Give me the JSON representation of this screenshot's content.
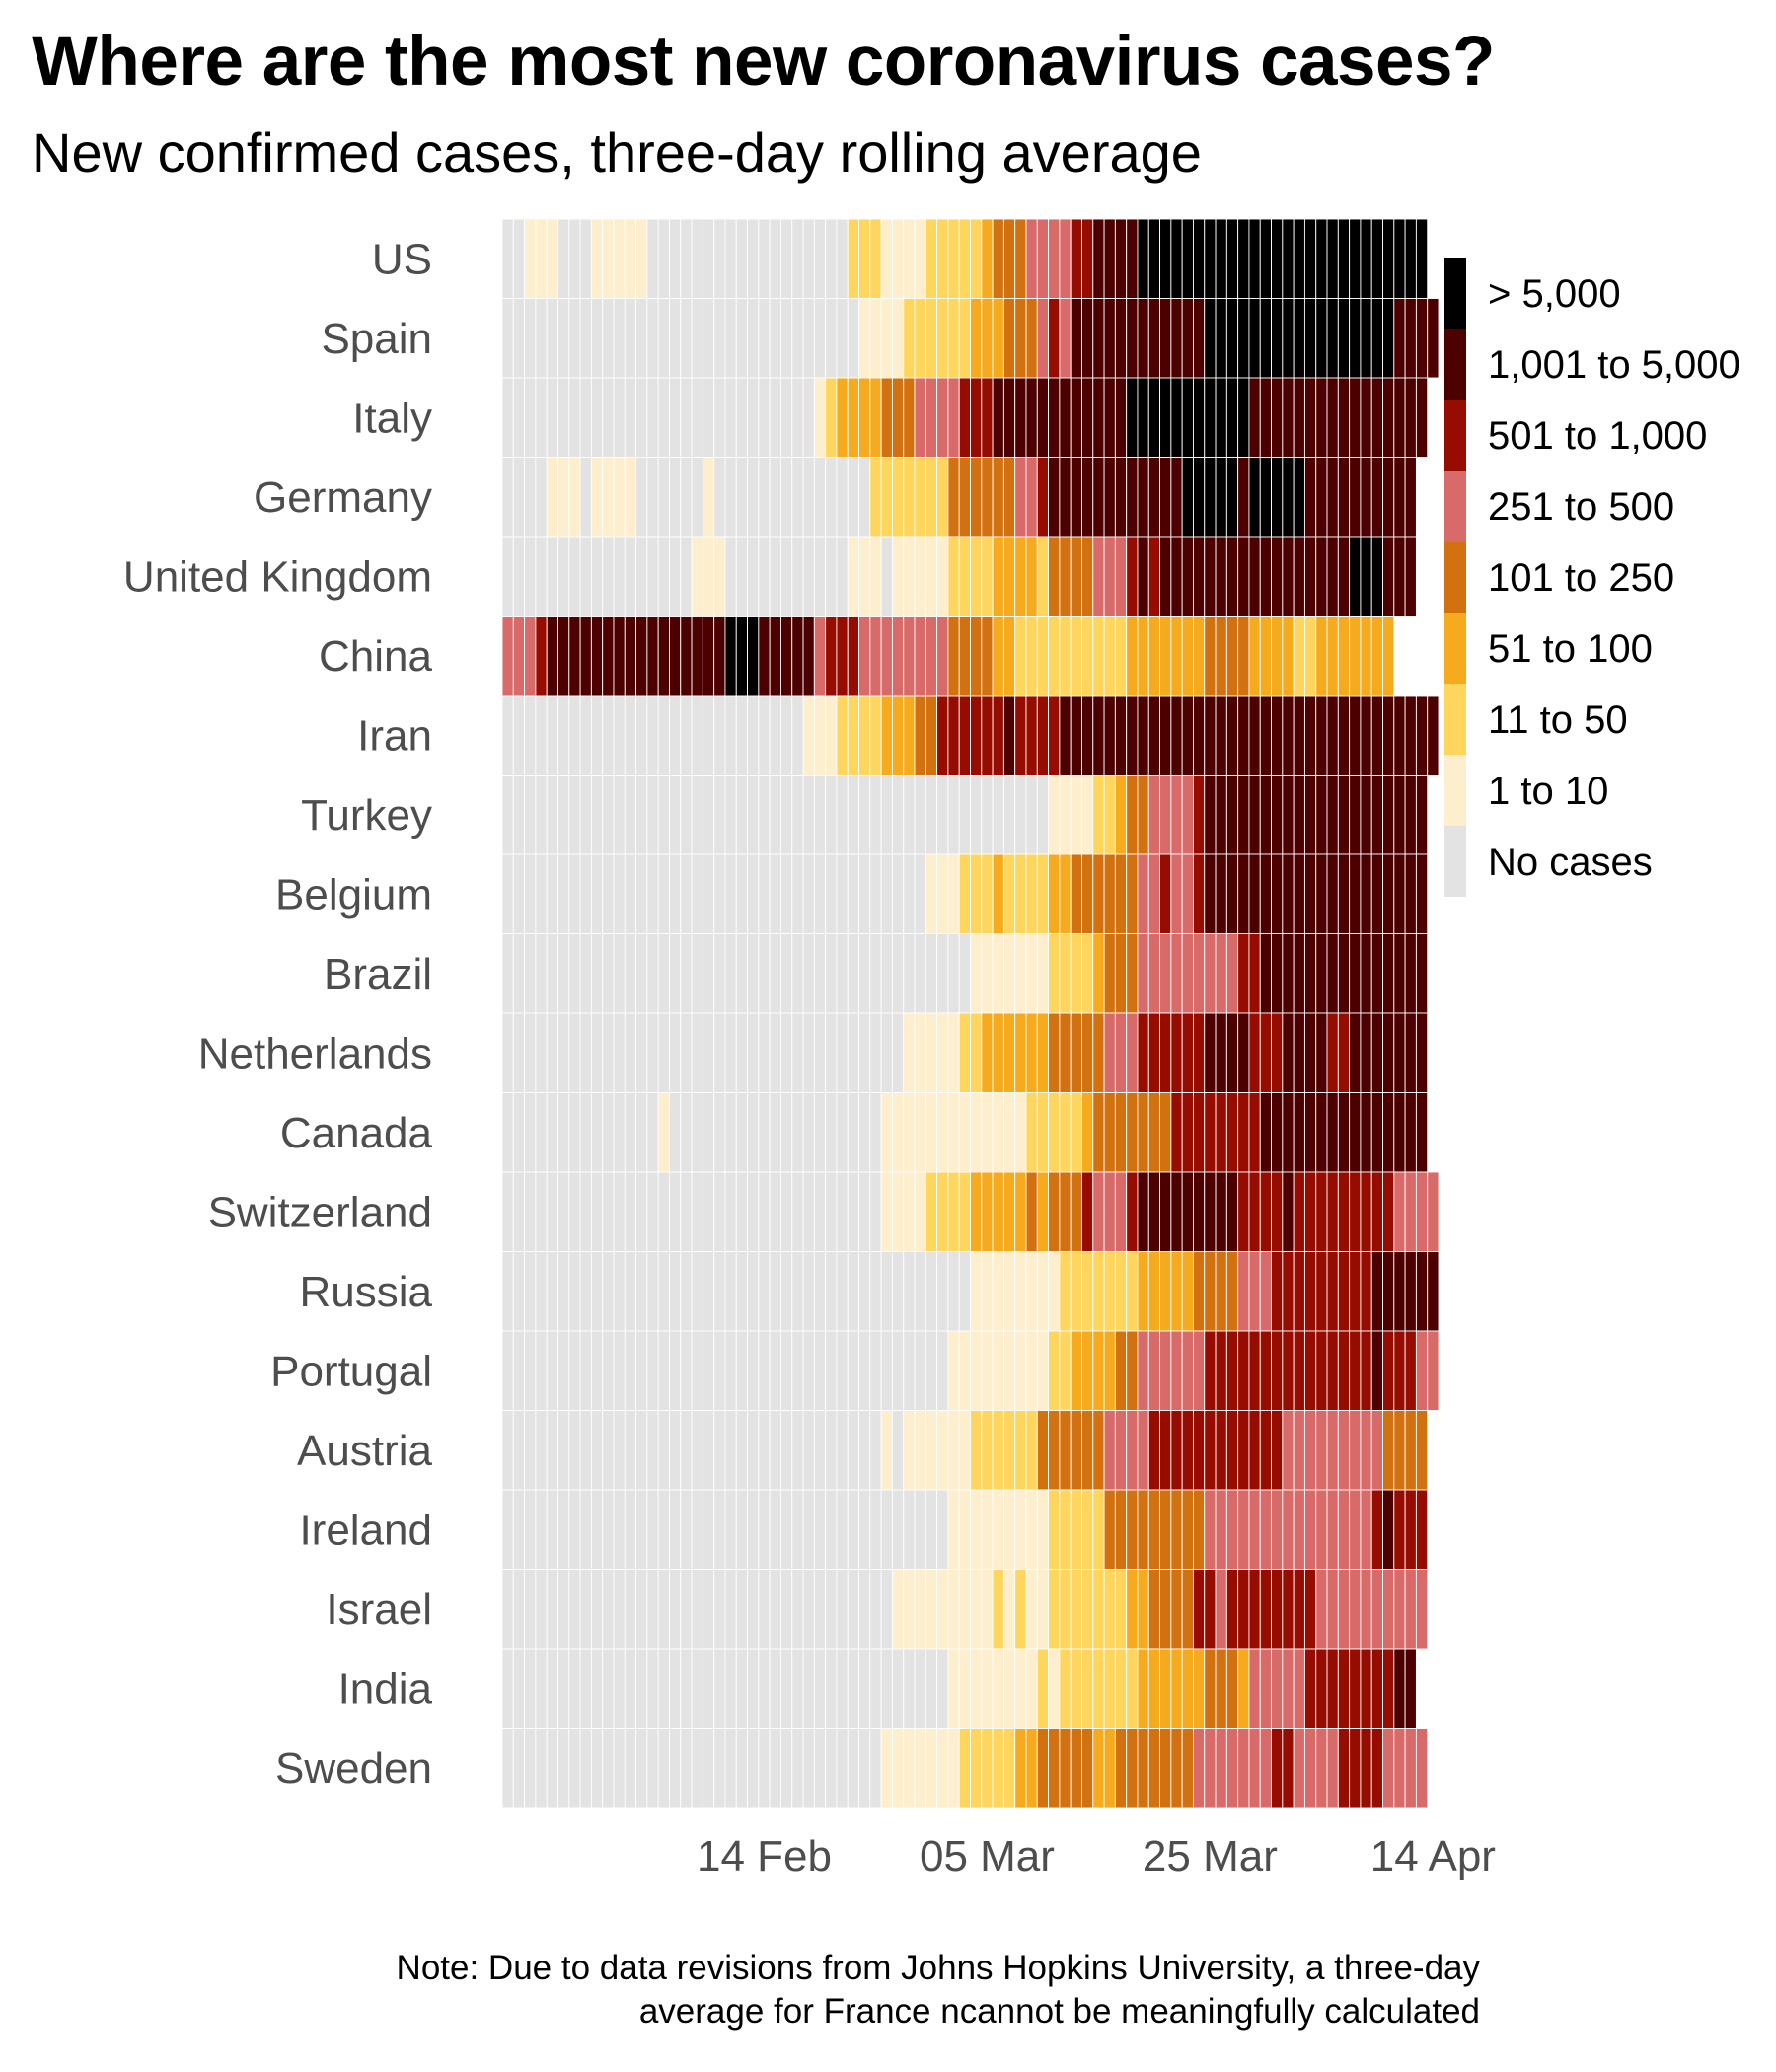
{
  "title": "Where are the most new coronavirus cases?",
  "subtitle": "New confirmed cases, three-day rolling average",
  "note": {
    "line1": "Note: Due to data revisions from Johns Hopkins University, a three-day",
    "line2": "average for France ncannot be meaningfully calculated"
  },
  "chart_data": {
    "type": "heatmap",
    "x_ticks": [
      "14 Feb",
      "05 Mar",
      "25 Mar",
      "14 Apr"
    ],
    "x_range": [
      "22 Jan",
      "15 Apr"
    ],
    "legend": {
      "position": "right",
      "items": [
        {
          "label": "> 5,000",
          "color": "#000000"
        },
        {
          "label": "1,001 to 5,000",
          "color": "#4d0000"
        },
        {
          "label": "501 to 1,000",
          "color": "#970c00"
        },
        {
          "label": "251 to 500",
          "color": "#d96a6a"
        },
        {
          "label": "101 to 250",
          "color": "#d2710f"
        },
        {
          "label": "51 to 100",
          "color": "#f6ab1e"
        },
        {
          "label": "11 to 50",
          "color": "#fed65d"
        },
        {
          "label": "1 to 10",
          "color": "#fdeecd"
        },
        {
          "label": "No cases",
          "color": "#e3e3e3"
        }
      ]
    },
    "level_scale": "0 = No cases, 1 = 1 to 10, 2 = 11 to 50, 3 = 51 to 100, 4 = 101 to 250, 5 = 251 to 500, 6 = 501 to 1,000, 7 = 1,001 to 5,000, 8 = > 5,000",
    "rows": [
      {
        "country": "US",
        "levels": [
          [
            0,
            2
          ],
          [
            1,
            3
          ],
          [
            0,
            3
          ],
          [
            1,
            5
          ],
          [
            0,
            18
          ],
          [
            2,
            3
          ],
          [
            1,
            4
          ],
          [
            2,
            5
          ],
          [
            3,
            1
          ],
          [
            4,
            3
          ],
          [
            5,
            4
          ],
          [
            6,
            2
          ],
          [
            7,
            4
          ],
          [
            8,
            26
          ]
        ]
      },
      {
        "country": "Spain",
        "levels": [
          [
            0,
            32
          ],
          [
            1,
            4
          ],
          [
            2,
            6
          ],
          [
            3,
            3
          ],
          [
            4,
            3
          ],
          [
            5,
            1
          ],
          [
            6,
            1
          ],
          [
            5,
            1
          ],
          [
            7,
            12
          ],
          [
            8,
            17
          ],
          [
            7,
            5
          ]
        ]
      },
      {
        "country": "Italy",
        "levels": [
          [
            0,
            28
          ],
          [
            1,
            1
          ],
          [
            2,
            1
          ],
          [
            3,
            4
          ],
          [
            4,
            3
          ],
          [
            5,
            4
          ],
          [
            6,
            3
          ],
          [
            7,
            12
          ],
          [
            8,
            11
          ],
          [
            7,
            16
          ]
        ]
      },
      {
        "country": "Germany",
        "levels": [
          [
            0,
            4
          ],
          [
            1,
            3
          ],
          [
            0,
            1
          ],
          [
            1,
            4
          ],
          [
            0,
            6
          ],
          [
            1,
            1
          ],
          [
            0,
            14
          ],
          [
            2,
            7
          ],
          [
            4,
            6
          ],
          [
            5,
            2
          ],
          [
            6,
            1
          ],
          [
            7,
            12
          ],
          [
            8,
            5
          ],
          [
            7,
            1
          ],
          [
            8,
            5
          ],
          [
            7,
            10
          ]
        ]
      },
      {
        "country": "United Kingdom",
        "levels": [
          [
            0,
            17
          ],
          [
            1,
            3
          ],
          [
            0,
            11
          ],
          [
            1,
            3
          ],
          [
            0,
            1
          ],
          [
            1,
            5
          ],
          [
            2,
            4
          ],
          [
            3,
            4
          ],
          [
            2,
            1
          ],
          [
            4,
            4
          ],
          [
            5,
            3
          ],
          [
            6,
            1
          ],
          [
            7,
            1
          ],
          [
            6,
            1
          ],
          [
            7,
            17
          ],
          [
            8,
            3
          ],
          [
            7,
            3
          ]
        ]
      },
      {
        "country": "China",
        "levels": [
          [
            5,
            3
          ],
          [
            6,
            1
          ],
          [
            7,
            16
          ],
          [
            8,
            3
          ],
          [
            7,
            5
          ],
          [
            5,
            1
          ],
          [
            6,
            3
          ],
          [
            5,
            8
          ],
          [
            4,
            4
          ],
          [
            3,
            2
          ],
          [
            2,
            10
          ],
          [
            3,
            7
          ],
          [
            4,
            4
          ],
          [
            3,
            4
          ],
          [
            2,
            2
          ],
          [
            3,
            7
          ]
        ]
      },
      {
        "country": "Iran",
        "levels": [
          [
            0,
            27
          ],
          [
            1,
            3
          ],
          [
            2,
            4
          ],
          [
            3,
            3
          ],
          [
            4,
            2
          ],
          [
            6,
            6
          ],
          [
            7,
            1
          ],
          [
            6,
            4
          ],
          [
            7,
            34
          ]
        ]
      },
      {
        "country": "Turkey",
        "levels": [
          [
            0,
            49
          ],
          [
            1,
            4
          ],
          [
            2,
            2
          ],
          [
            3,
            1
          ],
          [
            4,
            2
          ],
          [
            5,
            4
          ],
          [
            6,
            1
          ],
          [
            7,
            20
          ]
        ]
      },
      {
        "country": "Belgium",
        "levels": [
          [
            0,
            38
          ],
          [
            1,
            3
          ],
          [
            2,
            3
          ],
          [
            3,
            1
          ],
          [
            2,
            4
          ],
          [
            3,
            2
          ],
          [
            4,
            6
          ],
          [
            5,
            2
          ],
          [
            6,
            1
          ],
          [
            5,
            2
          ],
          [
            6,
            1
          ],
          [
            7,
            20
          ]
        ]
      },
      {
        "country": "Brazil",
        "levels": [
          [
            0,
            42
          ],
          [
            1,
            7
          ],
          [
            2,
            4
          ],
          [
            3,
            1
          ],
          [
            4,
            3
          ],
          [
            5,
            9
          ],
          [
            6,
            2
          ],
          [
            7,
            15
          ]
        ]
      },
      {
        "country": "Netherlands",
        "levels": [
          [
            0,
            36
          ],
          [
            1,
            5
          ],
          [
            2,
            2
          ],
          [
            3,
            6
          ],
          [
            4,
            5
          ],
          [
            5,
            3
          ],
          [
            6,
            6
          ],
          [
            7,
            4
          ],
          [
            6,
            3
          ],
          [
            7,
            4
          ],
          [
            6,
            2
          ],
          [
            7,
            7
          ]
        ]
      },
      {
        "country": "Canada",
        "levels": [
          [
            0,
            14
          ],
          [
            1,
            1
          ],
          [
            0,
            19
          ],
          [
            1,
            13
          ],
          [
            2,
            5
          ],
          [
            3,
            1
          ],
          [
            4,
            7
          ],
          [
            6,
            8
          ],
          [
            7,
            15
          ]
        ]
      },
      {
        "country": "Switzerland",
        "levels": [
          [
            0,
            34
          ],
          [
            1,
            4
          ],
          [
            2,
            4
          ],
          [
            3,
            5
          ],
          [
            4,
            1
          ],
          [
            3,
            1
          ],
          [
            4,
            3
          ],
          [
            6,
            1
          ],
          [
            5,
            3
          ],
          [
            6,
            1
          ],
          [
            7,
            9
          ],
          [
            6,
            4
          ],
          [
            7,
            1
          ],
          [
            6,
            9
          ],
          [
            5,
            4
          ]
        ]
      },
      {
        "country": "Russia",
        "levels": [
          [
            0,
            42
          ],
          [
            1,
            8
          ],
          [
            2,
            7
          ],
          [
            3,
            5
          ],
          [
            4,
            4
          ],
          [
            5,
            3
          ],
          [
            6,
            9
          ],
          [
            7,
            8
          ]
        ]
      },
      {
        "country": "Portugal",
        "levels": [
          [
            0,
            40
          ],
          [
            1,
            9
          ],
          [
            2,
            2
          ],
          [
            3,
            4
          ],
          [
            4,
            2
          ],
          [
            5,
            6
          ],
          [
            6,
            15
          ],
          [
            7,
            1
          ],
          [
            6,
            3
          ],
          [
            5,
            2
          ]
        ]
      },
      {
        "country": "Austria",
        "levels": [
          [
            0,
            34
          ],
          [
            1,
            1
          ],
          [
            0,
            1
          ],
          [
            1,
            6
          ],
          [
            2,
            6
          ],
          [
            4,
            6
          ],
          [
            5,
            4
          ],
          [
            6,
            12
          ],
          [
            5,
            9
          ],
          [
            4,
            4
          ]
        ]
      },
      {
        "country": "Ireland",
        "levels": [
          [
            0,
            40
          ],
          [
            1,
            9
          ],
          [
            2,
            5
          ],
          [
            4,
            9
          ],
          [
            5,
            15
          ],
          [
            6,
            1
          ],
          [
            7,
            1
          ],
          [
            6,
            3
          ]
        ]
      },
      {
        "country": "Israel",
        "levels": [
          [
            0,
            35
          ],
          [
            1,
            9
          ],
          [
            2,
            1
          ],
          [
            1,
            1
          ],
          [
            2,
            1
          ],
          [
            1,
            2
          ],
          [
            2,
            7
          ],
          [
            3,
            2
          ],
          [
            4,
            4
          ],
          [
            6,
            2
          ],
          [
            5,
            1
          ],
          [
            6,
            8
          ],
          [
            5,
            10
          ]
        ]
      },
      {
        "country": "India",
        "levels": [
          [
            0,
            40
          ],
          [
            1,
            8
          ],
          [
            2,
            1
          ],
          [
            1,
            1
          ],
          [
            2,
            7
          ],
          [
            3,
            6
          ],
          [
            4,
            3
          ],
          [
            3,
            1
          ],
          [
            5,
            5
          ],
          [
            6,
            8
          ],
          [
            7,
            2
          ]
        ]
      },
      {
        "country": "Sweden",
        "levels": [
          [
            0,
            34
          ],
          [
            1,
            7
          ],
          [
            2,
            5
          ],
          [
            3,
            2
          ],
          [
            4,
            5
          ],
          [
            3,
            2
          ],
          [
            4,
            7
          ],
          [
            5,
            7
          ],
          [
            6,
            2
          ],
          [
            5,
            4
          ],
          [
            6,
            4
          ],
          [
            5,
            4
          ]
        ]
      }
    ]
  }
}
